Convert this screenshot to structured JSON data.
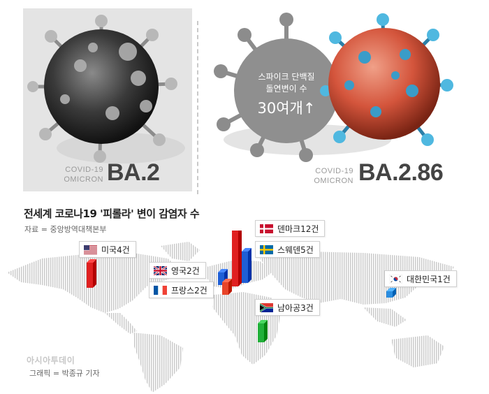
{
  "variants": {
    "ba2": {
      "small_line1": "COVID-19",
      "small_line2": "OMICRON",
      "big": "BA.2"
    },
    "ba286": {
      "small_line1": "COVID-19",
      "small_line2": "OMICRON",
      "big": "BA.2.86"
    }
  },
  "callout": {
    "line1": "스파이크 단백질",
    "line2": "돌연변이 수",
    "line3": "30여개↑"
  },
  "map": {
    "title": "전세계 코로나19 '피롤라' 변이 감염자 수",
    "source": "자료 = 중앙방역대책본부"
  },
  "countries": [
    {
      "name": "미국",
      "count": "4건",
      "value": 4,
      "flag": "usa-flag-icon",
      "bar_color": "#e02020"
    },
    {
      "name": "영국",
      "count": "2건",
      "value": 2,
      "flag": "uk-flag-icon",
      "bar_color": "#1f5fd6"
    },
    {
      "name": "프랑스",
      "count": "2건",
      "value": 2,
      "flag": "france-flag-icon",
      "bar_color": "#e8452a"
    },
    {
      "name": "덴마크",
      "count": "12건",
      "value": 12,
      "flag": "denmark-flag-icon",
      "bar_color": "#e02020"
    },
    {
      "name": "스웨덴",
      "count": "5건",
      "value": 5,
      "flag": "sweden-flag-icon",
      "bar_color": "#1f5fd6"
    },
    {
      "name": "남아공",
      "count": "3건",
      "value": 3,
      "flag": "south-africa-flag-icon",
      "bar_color": "#22b03a"
    },
    {
      "name": "대한민국",
      "count": "1건",
      "value": 1,
      "flag": "korea-flag-icon",
      "bar_color": "#2a8de0"
    }
  ],
  "footer": {
    "brand": "아시아투데이",
    "credit": "그래픽 = 박종규 기자"
  }
}
